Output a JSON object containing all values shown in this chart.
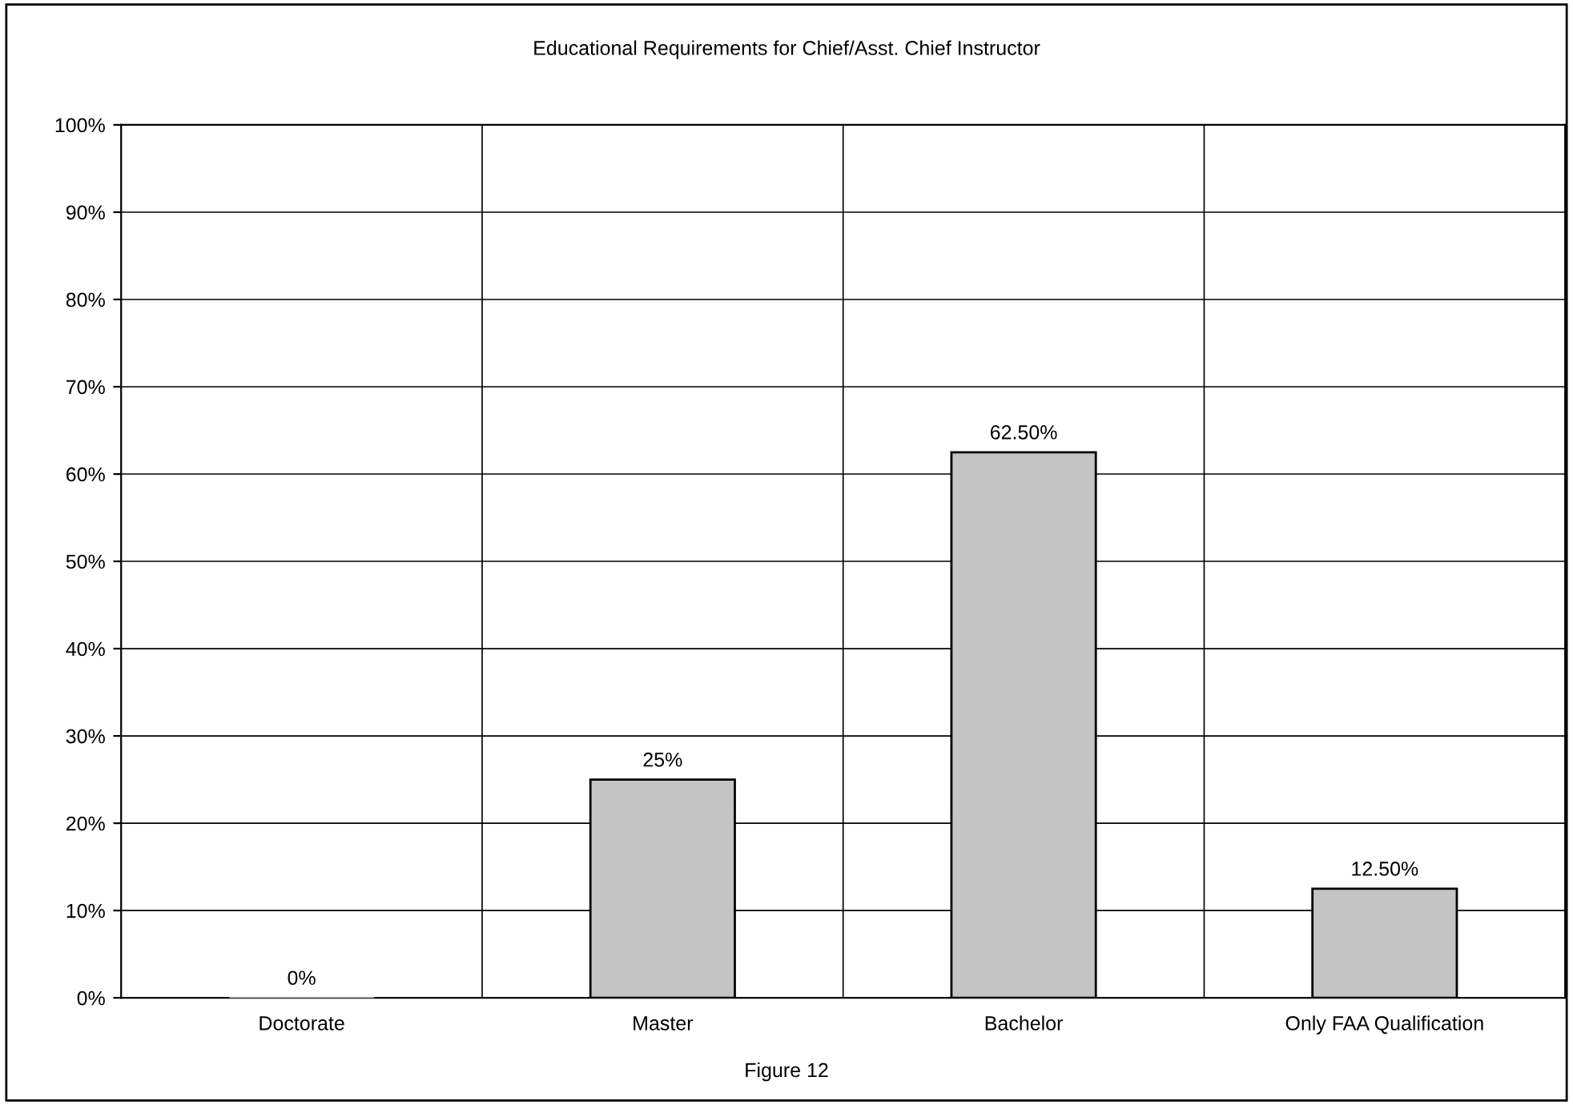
{
  "chart_data": {
    "type": "bar",
    "title": "Educational Requirements for Chief/Asst. Chief Instructor",
    "categories": [
      "Doctorate",
      "Master",
      "Bachelor",
      "Only FAA Qualification"
    ],
    "values": [
      0,
      25,
      62.5,
      12.5
    ],
    "value_labels": [
      "0%",
      "25%",
      "62.50%",
      "12.50%"
    ],
    "color": "#c4c4c4",
    "ylim": [
      0,
      100
    ],
    "yticks": [
      {
        "value": 0,
        "label": "0%"
      },
      {
        "value": 10,
        "label": "10%"
      },
      {
        "value": 20,
        "label": "20%"
      },
      {
        "value": 30,
        "label": "30%"
      },
      {
        "value": 40,
        "label": "40%"
      },
      {
        "value": 50,
        "label": "50%"
      },
      {
        "value": 60,
        "label": "60%"
      },
      {
        "value": 70,
        "label": "70%"
      },
      {
        "value": 80,
        "label": "80%"
      },
      {
        "value": 90,
        "label": "90%"
      },
      {
        "value": 100,
        "label": "100%"
      }
    ],
    "grid": true,
    "annotations": [
      "Figure 12"
    ]
  }
}
